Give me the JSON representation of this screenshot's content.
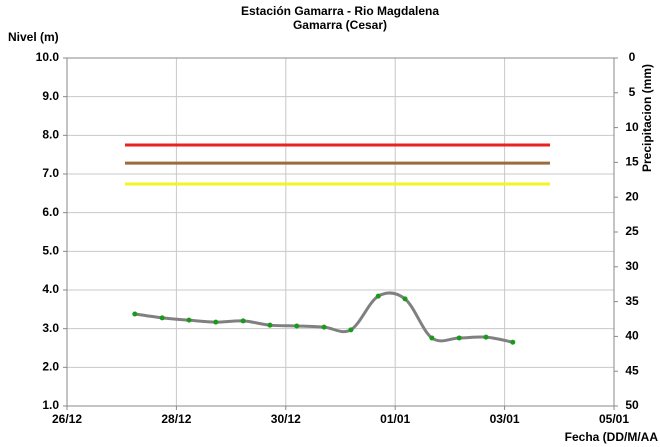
{
  "chart_data": {
    "type": "line",
    "title": "Estación Gamarra - Rio Magdalena",
    "subtitle": "Gamarra (Cesar)",
    "ylabel": "Nivel (m)",
    "y2label": "Precipitacion (mm)",
    "xlabel": "Fecha (DD/M/AA",
    "xlim": [
      0,
      10
    ],
    "xticks": [
      {
        "value": 0,
        "label": "26/12"
      },
      {
        "value": 2,
        "label": "28/12"
      },
      {
        "value": 4,
        "label": "30/12"
      },
      {
        "value": 6,
        "label": "01/01"
      },
      {
        "value": 8,
        "label": "03/01"
      },
      {
        "value": 10,
        "label": "05/01"
      }
    ],
    "ylim": [
      1,
      10
    ],
    "yticks": [
      {
        "value": 1,
        "label": "1.0"
      },
      {
        "value": 2,
        "label": "2.0"
      },
      {
        "value": 3,
        "label": "3.0"
      },
      {
        "value": 4,
        "label": "4.0"
      },
      {
        "value": 5,
        "label": "5.0"
      },
      {
        "value": 6,
        "label": "6.0"
      },
      {
        "value": 7,
        "label": "7.0"
      },
      {
        "value": 8,
        "label": "8.0"
      },
      {
        "value": 9,
        "label": "9.0"
      },
      {
        "value": 10,
        "label": "10.0"
      }
    ],
    "y2lim": [
      50,
      0
    ],
    "y2ticks": [
      0,
      5,
      10,
      15,
      20,
      25,
      30,
      35,
      40,
      45,
      50
    ],
    "grid": true,
    "series": [
      {
        "color": "#808080",
        "marker_color": "#1a9a1a",
        "smooth": true,
        "x": [
          1.24,
          1.74,
          2.23,
          2.72,
          3.22,
          3.71,
          4.2,
          4.7,
          5.19,
          5.69,
          6.18,
          6.67,
          7.17,
          7.66,
          8.15
        ],
        "values": [
          3.38,
          3.28,
          3.22,
          3.17,
          3.2,
          3.09,
          3.07,
          3.04,
          2.97,
          3.84,
          3.77,
          2.76,
          2.76,
          2.78,
          2.65
        ]
      },
      {
        "color": "#e8231e",
        "x": [
          1.06,
          8.83
        ],
        "values": [
          7.75,
          7.75
        ]
      },
      {
        "color": "#9c6b3a",
        "x": [
          1.06,
          8.83
        ],
        "values": [
          7.28,
          7.28
        ]
      },
      {
        "color": "#f5f51e",
        "x": [
          1.06,
          8.83
        ],
        "values": [
          6.74,
          6.74
        ]
      }
    ]
  }
}
